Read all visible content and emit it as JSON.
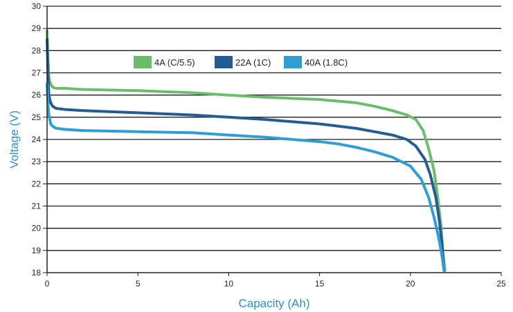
{
  "chart_data": {
    "type": "line",
    "title": "",
    "xlabel": "Capacity (Ah)",
    "ylabel": "Voltage (V)",
    "xlim": [
      0,
      25
    ],
    "ylim": [
      18,
      30
    ],
    "xticks": [
      0,
      5,
      10,
      15,
      20,
      25
    ],
    "yticks": [
      18,
      19,
      20,
      21,
      22,
      23,
      24,
      25,
      26,
      27,
      28,
      29,
      30
    ],
    "grid": "horizontal",
    "legend_position": "top-center",
    "series": [
      {
        "name": "4A (C/5.5)",
        "color": "#6cbd6a",
        "x": [
          0,
          0.05,
          0.1,
          0.15,
          0.2,
          0.3,
          0.5,
          1,
          2,
          5,
          8,
          10,
          12,
          15,
          17,
          18,
          19,
          19.8,
          20.3,
          20.7,
          21.0,
          21.3,
          21.5,
          21.7,
          21.8,
          21.9
        ],
        "y": [
          28.9,
          27.6,
          26.8,
          26.6,
          26.5,
          26.35,
          26.3,
          26.3,
          26.25,
          26.2,
          26.1,
          26.0,
          25.9,
          25.8,
          25.65,
          25.5,
          25.3,
          25.1,
          24.9,
          24.4,
          23.6,
          22.6,
          21.4,
          20.0,
          18.8,
          18.1
        ]
      },
      {
        "name": "22A (1C)",
        "color": "#235c93",
        "x": [
          0,
          0.05,
          0.1,
          0.15,
          0.2,
          0.3,
          0.5,
          1,
          2,
          5,
          8,
          10,
          12,
          15,
          17,
          18,
          19,
          19.8,
          20.3,
          20.8,
          21.1,
          21.4,
          21.6,
          21.75,
          21.85
        ],
        "y": [
          28.5,
          27.0,
          26.0,
          25.8,
          25.65,
          25.5,
          25.4,
          25.35,
          25.3,
          25.2,
          25.1,
          25.0,
          24.9,
          24.7,
          24.5,
          24.35,
          24.2,
          24.0,
          23.7,
          23.1,
          22.4,
          21.4,
          20.3,
          19.2,
          18.1
        ]
      },
      {
        "name": "40A (1.8C)",
        "color": "#2e9ed6",
        "x": [
          0,
          0.05,
          0.1,
          0.15,
          0.2,
          0.3,
          0.5,
          1,
          2,
          5,
          8,
          10,
          12,
          15,
          16,
          17,
          18,
          19,
          20,
          20.6,
          21.0,
          21.3,
          21.55,
          21.75,
          21.85
        ],
        "y": [
          26.5,
          25.6,
          25.1,
          24.9,
          24.7,
          24.6,
          24.5,
          24.45,
          24.4,
          24.35,
          24.3,
          24.2,
          24.1,
          23.9,
          23.8,
          23.65,
          23.45,
          23.2,
          22.8,
          22.2,
          21.4,
          20.5,
          19.6,
          18.7,
          18.1
        ]
      }
    ]
  }
}
